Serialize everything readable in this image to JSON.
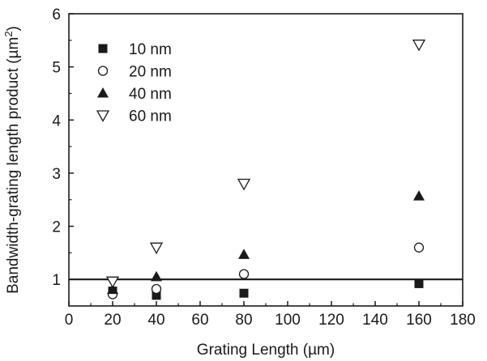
{
  "chart_data": {
    "type": "scatter",
    "xlabel": "Grating Length (µm)",
    "ylabel_main": "Bandwidth-grating length product (µm",
    "ylabel_sup": "2",
    "ylabel_close": ")",
    "xlim": [
      0,
      180
    ],
    "ylim": [
      0.5,
      6
    ],
    "xticks": [
      0,
      20,
      40,
      60,
      80,
      100,
      120,
      140,
      160,
      180
    ],
    "yticks": [
      1,
      2,
      3,
      4,
      5,
      6
    ],
    "grid": false,
    "legend_position": "top-left",
    "reference_line": {
      "orientation": "horizontal",
      "y": 1
    },
    "series": [
      {
        "name": "10 nm",
        "marker": "filled-square",
        "color": "#1a1a1a",
        "x": [
          20,
          40,
          80,
          160
        ],
        "y": [
          0.78,
          0.7,
          0.74,
          0.92
        ]
      },
      {
        "name": "20 nm",
        "marker": "open-circle",
        "color": "#1a1a1a",
        "x": [
          20,
          40,
          80,
          160
        ],
        "y": [
          0.72,
          0.82,
          1.1,
          1.6
        ]
      },
      {
        "name": "40 nm",
        "marker": "filled-triangle-up",
        "color": "#1a1a1a",
        "x": [
          20,
          40,
          80,
          160
        ],
        "y": [
          0.81,
          1.05,
          1.47,
          2.57
        ]
      },
      {
        "name": "60 nm",
        "marker": "open-triangle-down",
        "color": "#1a1a1a",
        "x": [
          20,
          40,
          80,
          160
        ],
        "y": [
          0.96,
          1.6,
          2.8,
          5.42
        ]
      }
    ]
  }
}
